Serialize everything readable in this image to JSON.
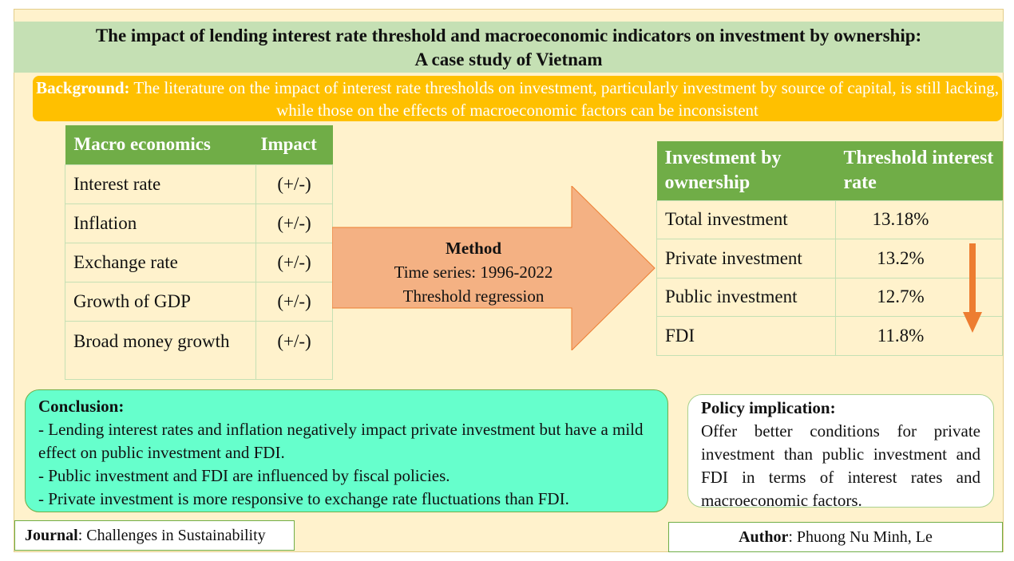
{
  "title": {
    "line1": "The impact of lending interest rate threshold and macroeconomic indicators on investment by ownership:",
    "line2": "A case study of Vietnam"
  },
  "background": {
    "label": "Background:",
    "text": " The literature on the impact of interest rate thresholds on investment, particularly investment by source of capital, is still lacking, while those on the effects of macroeconomic factors can be inconsistent"
  },
  "macro_table": {
    "headers": [
      "Macro economics",
      "Impact"
    ],
    "rows": [
      {
        "factor": "Interest rate",
        "impact": "(+/-)"
      },
      {
        "factor": "Inflation",
        "impact": "(+/-)"
      },
      {
        "factor": "Exchange rate",
        "impact": "(+/-)"
      },
      {
        "factor": "Growth of GDP",
        "impact": "(+/-)"
      },
      {
        "factor": "Broad money growth",
        "impact": "(+/-)"
      }
    ]
  },
  "method": {
    "heading": "Method",
    "line1": "Time series: 1996-2022",
    "line2": "Threshold regression"
  },
  "threshold_table": {
    "headers": [
      "Investment by ownership",
      "Threshold interest rate"
    ],
    "rows": [
      {
        "type": "Total investment",
        "rate": "13.18%"
      },
      {
        "type": "Private investment",
        "rate": "13.2%"
      },
      {
        "type": "Public investment",
        "rate": "12.7%"
      },
      {
        "type": "FDI",
        "rate": "11.8%"
      }
    ]
  },
  "conclusion": {
    "heading": "Conclusion:",
    "points": [
      "- Lending interest rates and inflation negatively impact private investment but have a mild effect on public investment and FDI.",
      "- Public investment and FDI are influenced by fiscal policies.",
      "- Private investment is more responsive to exchange rate fluctuations than FDI."
    ]
  },
  "policy": {
    "heading": "Policy implication:",
    "text": "Offer better conditions for private investment than public investment and FDI in terms of interest rates and macroeconomic factors."
  },
  "journal": {
    "label": "Journal",
    "value": ": Challenges in Sustainability"
  },
  "author": {
    "label": "Author",
    "value": ": Phuong Nu Minh, Le"
  },
  "colors": {
    "title_band": "#c5e0b4",
    "background_box": "#ffc000",
    "table_header": "#70ad47",
    "arrow_fill": "#f4b183",
    "down_arrow": "#ed7d31",
    "conclusion_fill": "#66ffcc",
    "frame_fill": "#fff2cc"
  }
}
